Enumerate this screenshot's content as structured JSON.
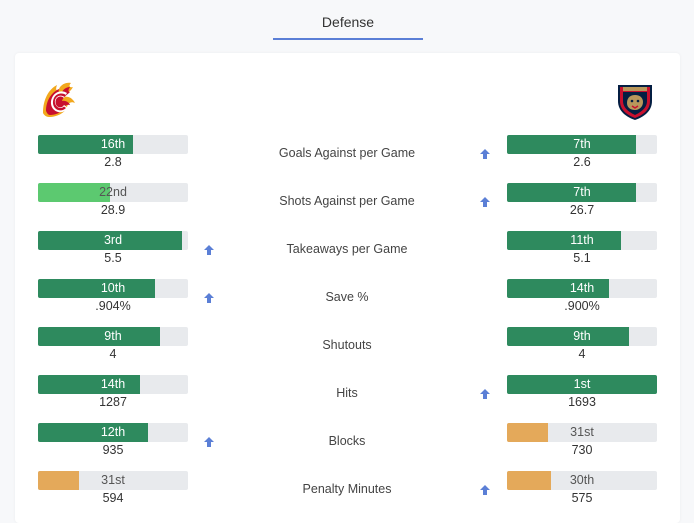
{
  "tab": {
    "label": "Defense"
  },
  "colors": {
    "strong": "#2e8a5e",
    "mid": "#5cc970",
    "weak": "#e4a95a",
    "track": "#e8eaed",
    "arrow": "#5b7fd6"
  },
  "teams": {
    "left": {
      "logo": "calgary-flames-logo"
    },
    "right": {
      "logo": "florida-panthers-logo"
    }
  },
  "rows": [
    {
      "label": "Goals Against per Game",
      "left": {
        "rank": "16th",
        "value": "2.8",
        "pct": 0.63,
        "tier": "strong"
      },
      "right": {
        "rank": "7th",
        "value": "2.6",
        "pct": 0.86,
        "tier": "strong"
      },
      "better": "right"
    },
    {
      "label": "Shots Against per Game",
      "left": {
        "rank": "22nd",
        "value": "28.9",
        "pct": 0.48,
        "tier": "mid"
      },
      "right": {
        "rank": "7th",
        "value": "26.7",
        "pct": 0.86,
        "tier": "strong"
      },
      "better": "right"
    },
    {
      "label": "Takeaways per Game",
      "left": {
        "rank": "3rd",
        "value": "5.5",
        "pct": 0.96,
        "tier": "strong"
      },
      "right": {
        "rank": "11th",
        "value": "5.1",
        "pct": 0.76,
        "tier": "strong"
      },
      "better": "left"
    },
    {
      "label": "Save %",
      "left": {
        "rank": "10th",
        "value": ".904%",
        "pct": 0.78,
        "tier": "strong"
      },
      "right": {
        "rank": "14th",
        "value": ".900%",
        "pct": 0.68,
        "tier": "strong"
      },
      "better": "left"
    },
    {
      "label": "Shutouts",
      "left": {
        "rank": "9th",
        "value": "4",
        "pct": 0.81,
        "tier": "strong"
      },
      "right": {
        "rank": "9th",
        "value": "4",
        "pct": 0.81,
        "tier": "strong"
      },
      "better": "none"
    },
    {
      "label": "Hits",
      "left": {
        "rank": "14th",
        "value": "1287",
        "pct": 0.68,
        "tier": "strong"
      },
      "right": {
        "rank": "1st",
        "value": "1693",
        "pct": 1.0,
        "tier": "strong"
      },
      "better": "right"
    },
    {
      "label": "Blocks",
      "left": {
        "rank": "12th",
        "value": "935",
        "pct": 0.73,
        "tier": "strong"
      },
      "right": {
        "rank": "31st",
        "value": "730",
        "pct": 0.27,
        "tier": "weak"
      },
      "better": "left"
    },
    {
      "label": "Penalty Minutes",
      "left": {
        "rank": "31st",
        "value": "594",
        "pct": 0.27,
        "tier": "weak"
      },
      "right": {
        "rank": "30th",
        "value": "575",
        "pct": 0.29,
        "tier": "weak"
      },
      "better": "right"
    }
  ]
}
